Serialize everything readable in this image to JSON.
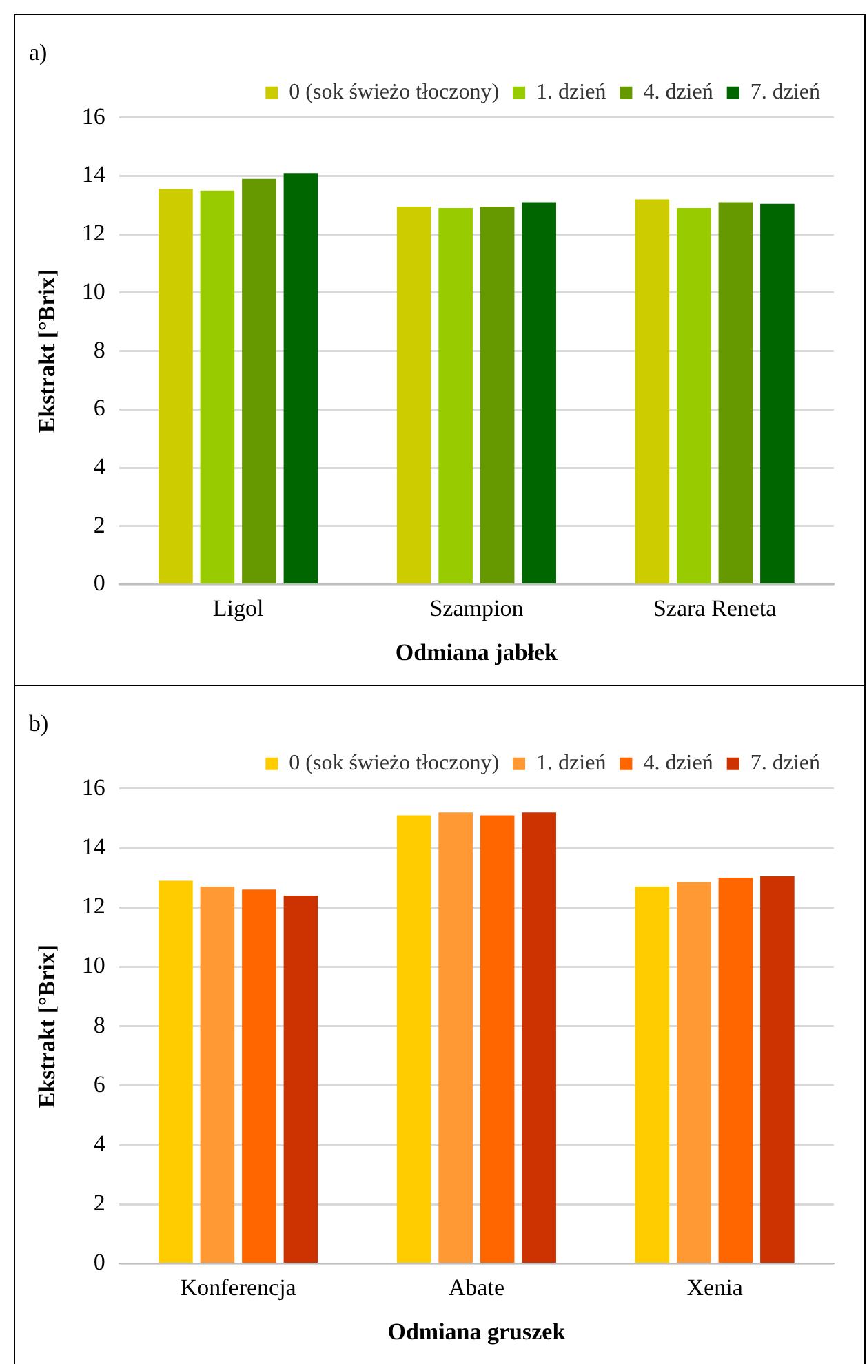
{
  "chart_data": [
    {
      "type": "bar",
      "title": "a)",
      "xlabel": "Odmiana jabłek",
      "ylabel": "Ekstrakt [°Brix]",
      "categories": [
        "Ligol",
        "Szampion",
        "Szara Reneta"
      ],
      "series": [
        {
          "name": "0 (sok świeżo tłoczony)",
          "color": "#cccc00",
          "values": [
            13.55,
            12.95,
            13.2
          ]
        },
        {
          "name": "1. dzień",
          "color": "#99cc00",
          "values": [
            13.5,
            12.9,
            12.9
          ]
        },
        {
          "name": "4. dzień",
          "color": "#669900",
          "values": [
            13.9,
            12.95,
            13.1
          ]
        },
        {
          "name": "7. dzień",
          "color": "#006600",
          "values": [
            14.1,
            13.1,
            13.05
          ]
        }
      ],
      "ylim": [
        0,
        16
      ],
      "yticks": [
        0,
        2,
        4,
        6,
        8,
        10,
        12,
        14,
        16
      ],
      "grid": "y",
      "legend": "top"
    },
    {
      "type": "bar",
      "title": "b)",
      "xlabel": "Odmiana gruszek",
      "ylabel": "Ekstrakt [°Brix]",
      "categories": [
        "Konferencja",
        "Abate",
        "Xenia"
      ],
      "series": [
        {
          "name": "0 (sok świeżo tłoczony)",
          "color": "#ffcc00",
          "values": [
            12.9,
            15.1,
            12.7
          ]
        },
        {
          "name": "1. dzień",
          "color": "#ff9933",
          "values": [
            12.7,
            15.2,
            12.85
          ]
        },
        {
          "name": "4. dzień",
          "color": "#ff6600",
          "values": [
            12.6,
            15.1,
            13.0
          ]
        },
        {
          "name": "7. dzień",
          "color": "#cc3300",
          "values": [
            12.4,
            15.2,
            13.05
          ]
        }
      ],
      "ylim": [
        0,
        16
      ],
      "yticks": [
        0,
        2,
        4,
        6,
        8,
        10,
        12,
        14,
        16
      ],
      "grid": "y",
      "legend": "top"
    }
  ]
}
